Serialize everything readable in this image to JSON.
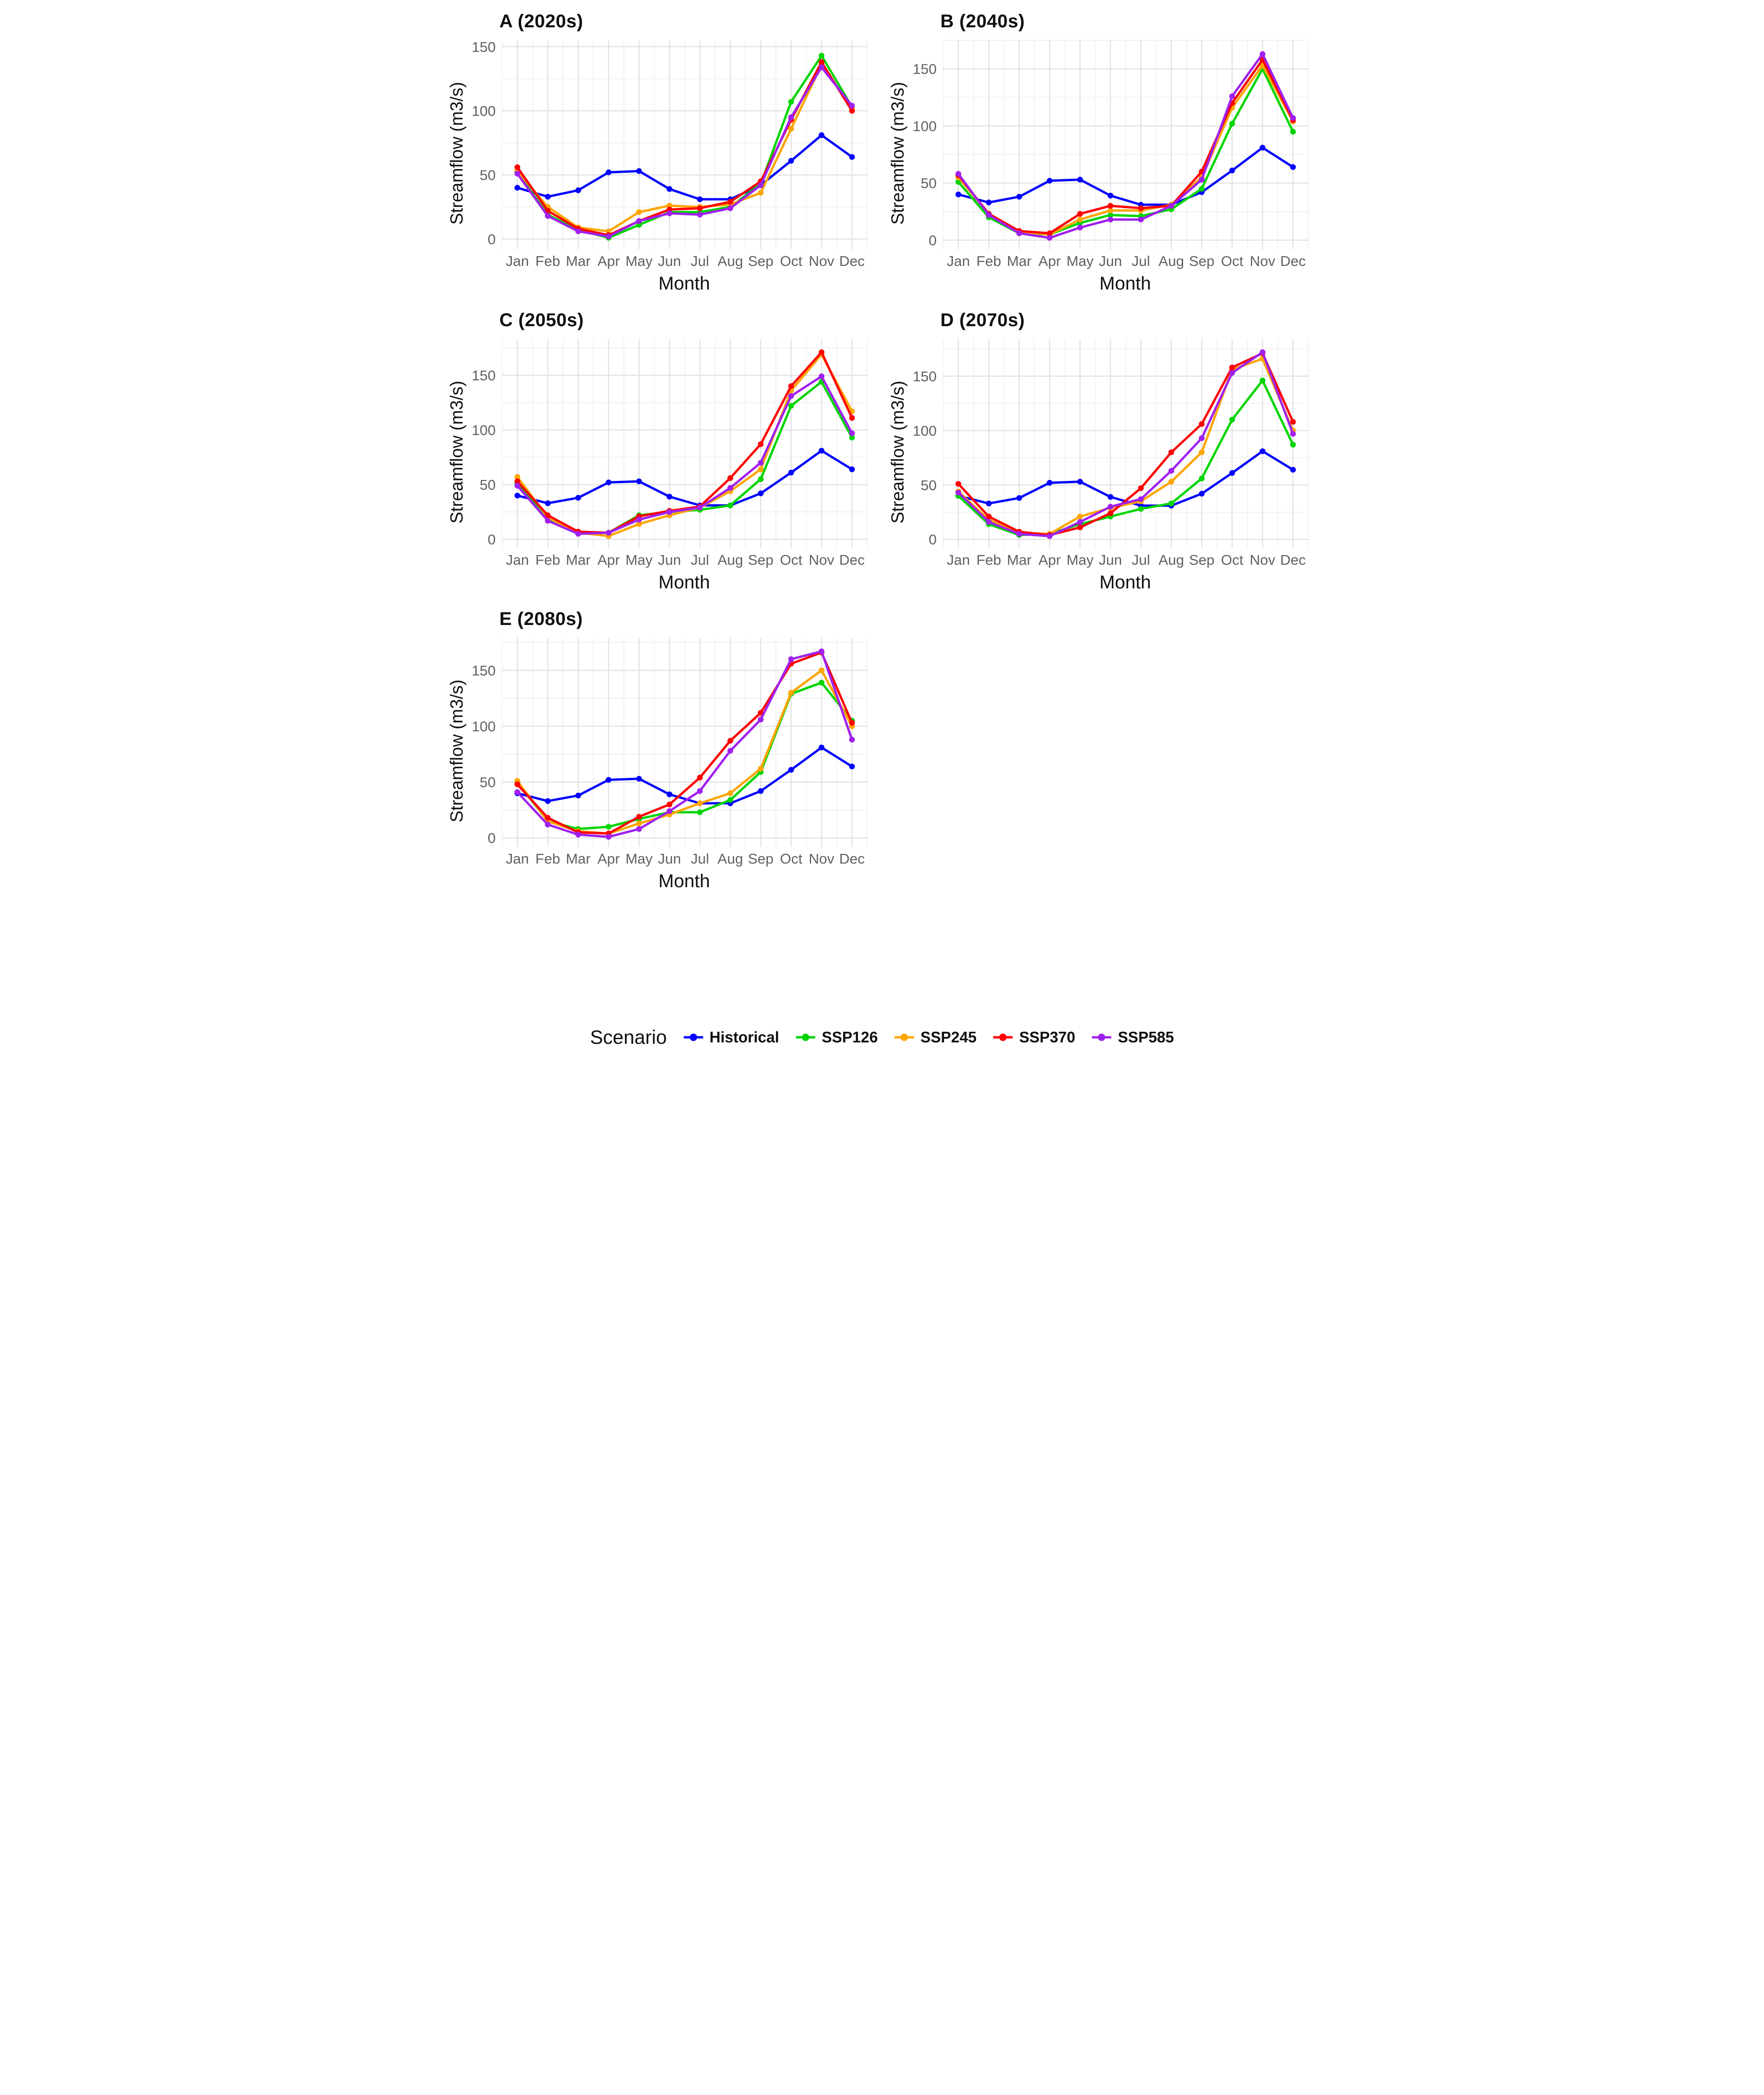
{
  "axis": {
    "ylabel": "Streamflow (m3/s)",
    "xlabel": "Month",
    "months": [
      "Jan",
      "Feb",
      "Mar",
      "Apr",
      "May",
      "Jun",
      "Jul",
      "Aug",
      "Sep",
      "Oct",
      "Nov",
      "Dec"
    ],
    "yticks": [
      0,
      50,
      100,
      150
    ],
    "tick_color": "#606060",
    "grid_major_color": "#e2e2e2",
    "grid_minor_color": "#f0f0f0"
  },
  "legend": {
    "title": "Scenario",
    "entries": [
      {
        "label": "Historical",
        "color": "#0000FF"
      },
      {
        "label": "SSP126",
        "color": "#00D500"
      },
      {
        "label": "SSP245",
        "color": "#FFA500"
      },
      {
        "label": "SSP370",
        "color": "#FF0000"
      },
      {
        "label": "SSP585",
        "color": "#A020F0"
      }
    ]
  },
  "chart_data": [
    {
      "type": "line",
      "title": "A (2020s)",
      "xlabel": "Month",
      "ylabel": "Streamflow (m3/s)",
      "categories": [
        "Jan",
        "Feb",
        "Mar",
        "Apr",
        "May",
        "Jun",
        "Jul",
        "Aug",
        "Sep",
        "Oct",
        "Nov",
        "Dec"
      ],
      "ylim": [
        -8,
        155
      ],
      "yticks": [
        0,
        50,
        100,
        150
      ],
      "grid": "major+minor",
      "legend_position": "none",
      "series": [
        {
          "name": "Historical",
          "color": "#0000FF",
          "values": [
            40,
            33,
            38,
            52,
            53,
            39,
            31,
            31,
            42,
            61,
            81,
            64
          ]
        },
        {
          "name": "SSP126",
          "color": "#00D500",
          "values": [
            52,
            19,
            7,
            1,
            11,
            21,
            21,
            25,
            43,
            107,
            143,
            103
          ]
        },
        {
          "name": "SSP245",
          "color": "#FFA500",
          "values": [
            53,
            25,
            9,
            6,
            21,
            26,
            25,
            27,
            36,
            86,
            136,
            102
          ]
        },
        {
          "name": "SSP370",
          "color": "#FF0000",
          "values": [
            56,
            22,
            8,
            3,
            14,
            23,
            24,
            29,
            45,
            93,
            138,
            100
          ]
        },
        {
          "name": "SSP585",
          "color": "#A020F0",
          "values": [
            51,
            18,
            6,
            2,
            14,
            20,
            19,
            24,
            42,
            95,
            134,
            104
          ]
        }
      ]
    },
    {
      "type": "line",
      "title": "B (2040s)",
      "xlabel": "Month",
      "ylabel": "Streamflow (m3/s)",
      "categories": [
        "Jan",
        "Feb",
        "Mar",
        "Apr",
        "May",
        "Jun",
        "Jul",
        "Aug",
        "Sep",
        "Oct",
        "Nov",
        "Dec"
      ],
      "ylim": [
        -8,
        175
      ],
      "yticks": [
        0,
        50,
        100,
        150
      ],
      "grid": "major+minor",
      "legend_position": "none",
      "series": [
        {
          "name": "Historical",
          "color": "#0000FF",
          "values": [
            40,
            33,
            38,
            52,
            53,
            39,
            31,
            31,
            42,
            61,
            81,
            64
          ]
        },
        {
          "name": "SSP126",
          "color": "#00D500",
          "values": [
            51,
            20,
            6,
            5,
            15,
            22,
            21,
            27,
            45,
            102,
            150,
            95
          ]
        },
        {
          "name": "SSP245",
          "color": "#FFA500",
          "values": [
            55,
            23,
            7,
            5,
            18,
            26,
            26,
            31,
            55,
            116,
            153,
            104
          ]
        },
        {
          "name": "SSP370",
          "color": "#FF0000",
          "values": [
            57,
            23,
            8,
            6,
            23,
            30,
            28,
            30,
            60,
            120,
            158,
            105
          ]
        },
        {
          "name": "SSP585",
          "color": "#A020F0",
          "values": [
            58,
            22,
            6,
            2,
            11,
            18,
            18,
            30,
            53,
            126,
            163,
            107
          ]
        }
      ]
    },
    {
      "type": "line",
      "title": "C (2050s)",
      "xlabel": "Month",
      "ylabel": "Streamflow (m3/s)",
      "categories": [
        "Jan",
        "Feb",
        "Mar",
        "Apr",
        "May",
        "Jun",
        "Jul",
        "Aug",
        "Sep",
        "Oct",
        "Nov",
        "Dec"
      ],
      "ylim": [
        -8,
        183
      ],
      "yticks": [
        0,
        50,
        100,
        150
      ],
      "grid": "major+minor",
      "legend_position": "none",
      "series": [
        {
          "name": "Historical",
          "color": "#0000FF",
          "values": [
            40,
            33,
            38,
            52,
            53,
            39,
            31,
            31,
            42,
            61,
            81,
            64
          ]
        },
        {
          "name": "SSP126",
          "color": "#00D500",
          "values": [
            51,
            19,
            6,
            6,
            22,
            25,
            27,
            31,
            55,
            122,
            144,
            93
          ]
        },
        {
          "name": "SSP245",
          "color": "#FFA500",
          "values": [
            57,
            20,
            6,
            3,
            14,
            22,
            29,
            44,
            64,
            136,
            169,
            117
          ]
        },
        {
          "name": "SSP370",
          "color": "#FF0000",
          "values": [
            53,
            22,
            7,
            6,
            21,
            26,
            30,
            56,
            87,
            140,
            171,
            111
          ]
        },
        {
          "name": "SSP585",
          "color": "#A020F0",
          "values": [
            49,
            17,
            5,
            6,
            18,
            25,
            29,
            47,
            70,
            131,
            149,
            97
          ]
        }
      ]
    },
    {
      "type": "line",
      "title": "D (2070s)",
      "xlabel": "Month",
      "ylabel": "Streamflow (m3/s)",
      "categories": [
        "Jan",
        "Feb",
        "Mar",
        "Apr",
        "May",
        "Jun",
        "Jul",
        "Aug",
        "Sep",
        "Oct",
        "Nov",
        "Dec"
      ],
      "ylim": [
        -8,
        184
      ],
      "yticks": [
        0,
        50,
        100,
        150
      ],
      "grid": "major+minor",
      "legend_position": "none",
      "series": [
        {
          "name": "Historical",
          "color": "#0000FF",
          "values": [
            40,
            33,
            38,
            52,
            53,
            39,
            31,
            31,
            42,
            61,
            81,
            64
          ]
        },
        {
          "name": "SSP126",
          "color": "#00D500",
          "values": [
            40,
            14,
            4,
            5,
            14,
            21,
            28,
            33,
            56,
            110,
            146,
            87
          ]
        },
        {
          "name": "SSP245",
          "color": "#FFA500",
          "values": [
            44,
            18,
            6,
            5,
            21,
            29,
            35,
            53,
            80,
            156,
            166,
            100
          ]
        },
        {
          "name": "SSP370",
          "color": "#FF0000",
          "values": [
            51,
            21,
            7,
            4,
            11,
            24,
            47,
            80,
            106,
            158,
            171,
            108
          ]
        },
        {
          "name": "SSP585",
          "color": "#A020F0",
          "values": [
            43,
            16,
            5,
            3,
            16,
            30,
            37,
            63,
            93,
            153,
            172,
            97
          ]
        }
      ]
    },
    {
      "type": "line",
      "title": "E (2080s)",
      "xlabel": "Month",
      "ylabel": "Streamflow (m3/s)",
      "categories": [
        "Jan",
        "Feb",
        "Mar",
        "Apr",
        "May",
        "Jun",
        "Jul",
        "Aug",
        "Sep",
        "Oct",
        "Nov",
        "Dec"
      ],
      "ylim": [
        -8,
        179
      ],
      "yticks": [
        0,
        50,
        100,
        150
      ],
      "grid": "major+minor",
      "legend_position": "none",
      "series": [
        {
          "name": "Historical",
          "color": "#0000FF",
          "values": [
            40,
            33,
            38,
            52,
            53,
            39,
            31,
            31,
            42,
            61,
            81,
            64
          ]
        },
        {
          "name": "SSP126",
          "color": "#00D500",
          "values": [
            50,
            15,
            8,
            10,
            17,
            23,
            23,
            34,
            59,
            129,
            139,
            105
          ]
        },
        {
          "name": "SSP245",
          "color": "#FFA500",
          "values": [
            51,
            15,
            6,
            4,
            13,
            21,
            31,
            40,
            62,
            130,
            150,
            100
          ]
        },
        {
          "name": "SSP370",
          "color": "#FF0000",
          "values": [
            48,
            18,
            5,
            4,
            19,
            30,
            54,
            87,
            112,
            156,
            166,
            103
          ]
        },
        {
          "name": "SSP585",
          "color": "#A020F0",
          "values": [
            41,
            12,
            3,
            1,
            8,
            24,
            42,
            78,
            106,
            160,
            167,
            88
          ]
        }
      ]
    }
  ]
}
